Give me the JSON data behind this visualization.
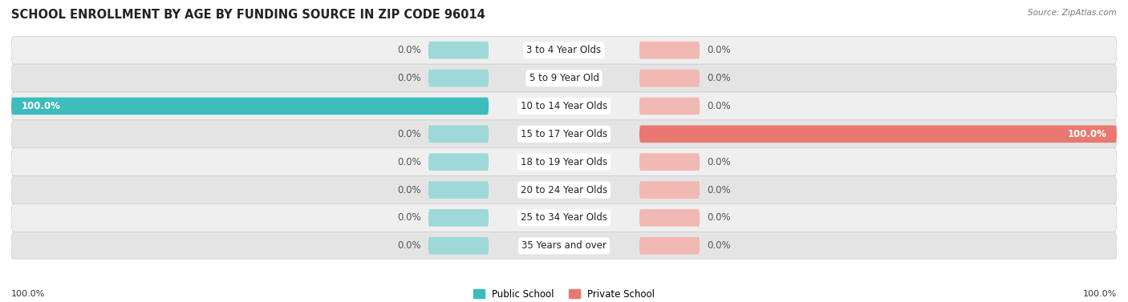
{
  "title": "SCHOOL ENROLLMENT BY AGE BY FUNDING SOURCE IN ZIP CODE 96014",
  "source": "Source: ZipAtlas.com",
  "categories": [
    "3 to 4 Year Olds",
    "5 to 9 Year Old",
    "10 to 14 Year Olds",
    "15 to 17 Year Olds",
    "18 to 19 Year Olds",
    "20 to 24 Year Olds",
    "25 to 34 Year Olds",
    "35 Years and over"
  ],
  "public_values": [
    0.0,
    0.0,
    100.0,
    0.0,
    0.0,
    0.0,
    0.0,
    0.0
  ],
  "private_values": [
    0.0,
    0.0,
    0.0,
    100.0,
    0.0,
    0.0,
    0.0,
    0.0
  ],
  "public_color": "#3DBCBC",
  "private_color": "#E87870",
  "public_color_light": "#9ED8D8",
  "private_color_light": "#F2B8B3",
  "row_bg": "#E8E8E8",
  "row_bg_inner": "#F5F5F5",
  "label_fontsize": 8.5,
  "title_fontsize": 10.5,
  "figsize": [
    14.06,
    3.77
  ]
}
